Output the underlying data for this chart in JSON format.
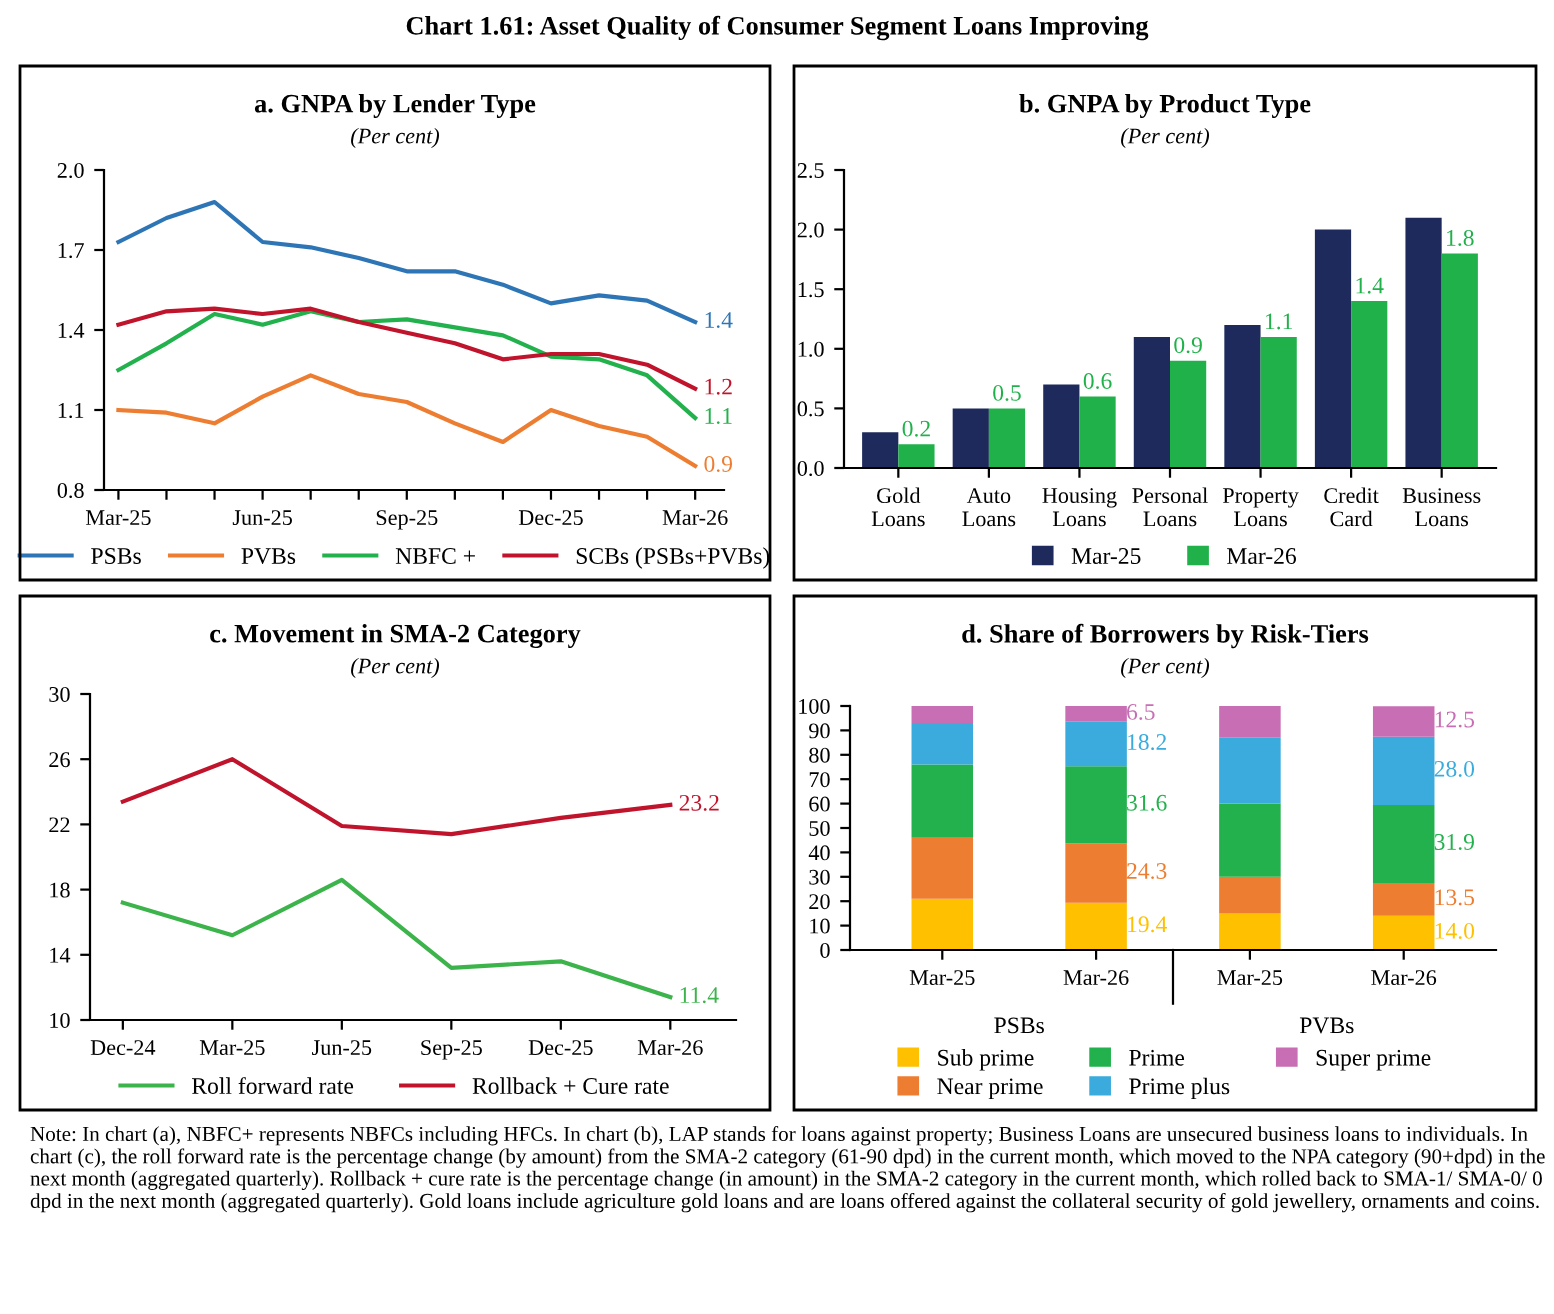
{
  "chart_data": [
    {
      "type": "other",
      "title": "Chart 1.61: Asset Quality of Consumer Segment Loans Improving",
      "annotations": [
        "Note: In chart (a), NBFC+ represents NBFCs including HFCs. In chart (b), LAP stands for loans against property; Business Loans are unsecured business loans to individuals. In chart (c), the roll forward rate is the percentage change (by amount) from the SMA-2 category (61-90 dpd) in the current month, which moved to the NPA category (90+dpd) in the next month (aggregated quarterly). Rollback + cure rate is the percentage change (in amount) in the SMA-2 category in the current month, which rolled back to SMA-1/ SMA-0/ 0 dpd in the next month (aggregated quarterly). Gold loans include agriculture gold loans and are loans offered against the collateral security of gold jewellery, ornaments and coins."
      ]
    },
    {
      "type": "line",
      "title": "a. GNPA by Lender Type",
      "subtitle": "(Per cent)",
      "categories": [
        "Mar-25",
        null,
        null,
        "Jun-25",
        null,
        null,
        "Sep-25",
        null,
        null,
        "Dec-25",
        null,
        null,
        "Mar-26"
      ],
      "series": [
        {
          "name": "PSBs",
          "color": "#2e75b6",
          "values": [
            1.73,
            1.82,
            1.88,
            1.73,
            1.71,
            1.67,
            1.62,
            1.62,
            1.57,
            1.5,
            1.53,
            1.51,
            1.43
          ],
          "value_labels": [
            null,
            null,
            null,
            null,
            null,
            null,
            null,
            null,
            null,
            null,
            null,
            null,
            "1.4"
          ]
        },
        {
          "name": "PVBs",
          "color": "#ed7d31",
          "values": [
            1.1,
            1.09,
            1.05,
            1.15,
            1.23,
            1.16,
            1.13,
            1.05,
            0.98,
            1.1,
            1.04,
            1.0,
            0.89
          ],
          "value_labels": [
            null,
            null,
            null,
            null,
            null,
            null,
            null,
            null,
            null,
            null,
            null,
            null,
            "0.9"
          ]
        },
        {
          "name": "NBFC +",
          "color": "#22b14c",
          "values": [
            1.25,
            1.35,
            1.46,
            1.42,
            1.47,
            1.43,
            1.44,
            1.41,
            1.38,
            1.3,
            1.29,
            1.23,
            1.07
          ],
          "value_labels": [
            null,
            null,
            null,
            null,
            null,
            null,
            null,
            null,
            null,
            null,
            null,
            null,
            "1.1"
          ]
        },
        {
          "name": "SCBs (PSBs+PVBs)",
          "color": "#c0142c",
          "values": [
            1.42,
            1.47,
            1.48,
            1.46,
            1.48,
            1.43,
            1.39,
            1.35,
            1.29,
            1.31,
            1.31,
            1.27,
            1.18
          ],
          "value_labels": [
            null,
            null,
            null,
            null,
            null,
            null,
            null,
            null,
            null,
            null,
            null,
            null,
            "1.2"
          ]
        }
      ],
      "ylim": [
        0.8,
        2.0
      ],
      "yticks": [
        0.8,
        1.1,
        1.4,
        1.7,
        {
          "value": 2,
          "label": "2.0"
        }
      ],
      "legend": "bottom"
    },
    {
      "type": "bar",
      "title": "b. GNPA by Product Type",
      "subtitle": "(Per cent)",
      "categories": [
        "Gold\nLoans",
        "Auto\nLoans",
        "Housing\nLoans",
        "Personal\nLoans",
        "Property\nLoans",
        "Credit\nCard",
        "Business\nLoans"
      ],
      "series": [
        {
          "name": "Mar-25",
          "color": "#1f2a5c",
          "values": [
            0.3,
            0.5,
            0.7,
            1.1,
            1.2,
            2.0,
            2.1
          ]
        },
        {
          "name": "Mar-26",
          "color": "#21b14b",
          "values": [
            0.2,
            0.5,
            0.6,
            0.9,
            1.1,
            1.4,
            1.8
          ],
          "value_labels": [
            "0.2",
            "0.5",
            "0.6",
            "0.9",
            "1.1",
            "1.4",
            "1.8"
          ]
        }
      ],
      "ylim": [
        0,
        2.5
      ],
      "yticks": [
        {
          "value": 0,
          "label": "0.0"
        },
        0.5,
        {
          "value": 1,
          "label": "1.0"
        },
        1.5,
        {
          "value": 2,
          "label": "2.0"
        },
        2.5
      ],
      "legend": "bottom"
    },
    {
      "type": "line",
      "title": "c. Movement in SMA-2 Category",
      "subtitle": "(Per cent)",
      "categories": [
        "Dec-24",
        "Mar-25",
        "Jun-25",
        "Sep-25",
        "Dec-25",
        "Mar-26"
      ],
      "series": [
        {
          "name": "Roll forward rate",
          "color": "#3cb44b",
          "values": [
            17.2,
            15.2,
            18.6,
            13.2,
            13.6,
            11.4
          ],
          "value_labels": [
            null,
            null,
            null,
            null,
            null,
            "11.4"
          ]
        },
        {
          "name": "Rollback + Cure rate",
          "color": "#c0142c",
          "values": [
            23.4,
            26.0,
            21.9,
            21.4,
            22.4,
            23.2
          ],
          "value_labels": [
            null,
            null,
            null,
            null,
            null,
            "23.2"
          ]
        }
      ],
      "ylim": [
        10,
        30
      ],
      "yticks": [
        10,
        14,
        18,
        22,
        26,
        30
      ],
      "legend": "bottom"
    },
    {
      "type": "bar",
      "stacked": true,
      "title": "d. Share of Borrowers by Risk-Tiers",
      "subtitle": "(Per cent)",
      "categories": [
        "Mar-25",
        "Mar-26",
        "Mar-25",
        "Mar-26"
      ],
      "series": [
        {
          "name": "Sub prime",
          "color": "#ffc000",
          "values": [
            21,
            19.4,
            15,
            14.0
          ],
          "value_labels": [
            null,
            "19.4",
            null,
            "14.0"
          ]
        },
        {
          "name": "Near prime",
          "color": "#ed7d31",
          "values": [
            25,
            24.3,
            15,
            13.5
          ],
          "value_labels": [
            null,
            "24.3",
            null,
            "13.5"
          ]
        },
        {
          "name": "Prime",
          "color": "#22b14c",
          "values": [
            30,
            31.6,
            30,
            31.9
          ],
          "value_labels": [
            null,
            "31.6",
            null,
            "31.9"
          ]
        },
        {
          "name": "Prime plus",
          "color": "#3aabdc",
          "values": [
            17,
            18.2,
            27,
            28.0
          ],
          "value_labels": [
            null,
            "18.2",
            null,
            "28.0"
          ]
        },
        {
          "name": "Super prime",
          "color": "#c86eb4",
          "values": [
            7,
            6.5,
            13,
            12.5
          ],
          "value_labels": [
            null,
            "6.5",
            null,
            "12.5"
          ]
        }
      ],
      "annotations": [
        "PSBs",
        "PVBs"
      ],
      "ylim": [
        0,
        100
      ],
      "yticks": [
        0,
        10,
        20,
        30,
        40,
        50,
        60,
        70,
        80,
        90,
        100
      ],
      "legend": "bottom"
    }
  ]
}
